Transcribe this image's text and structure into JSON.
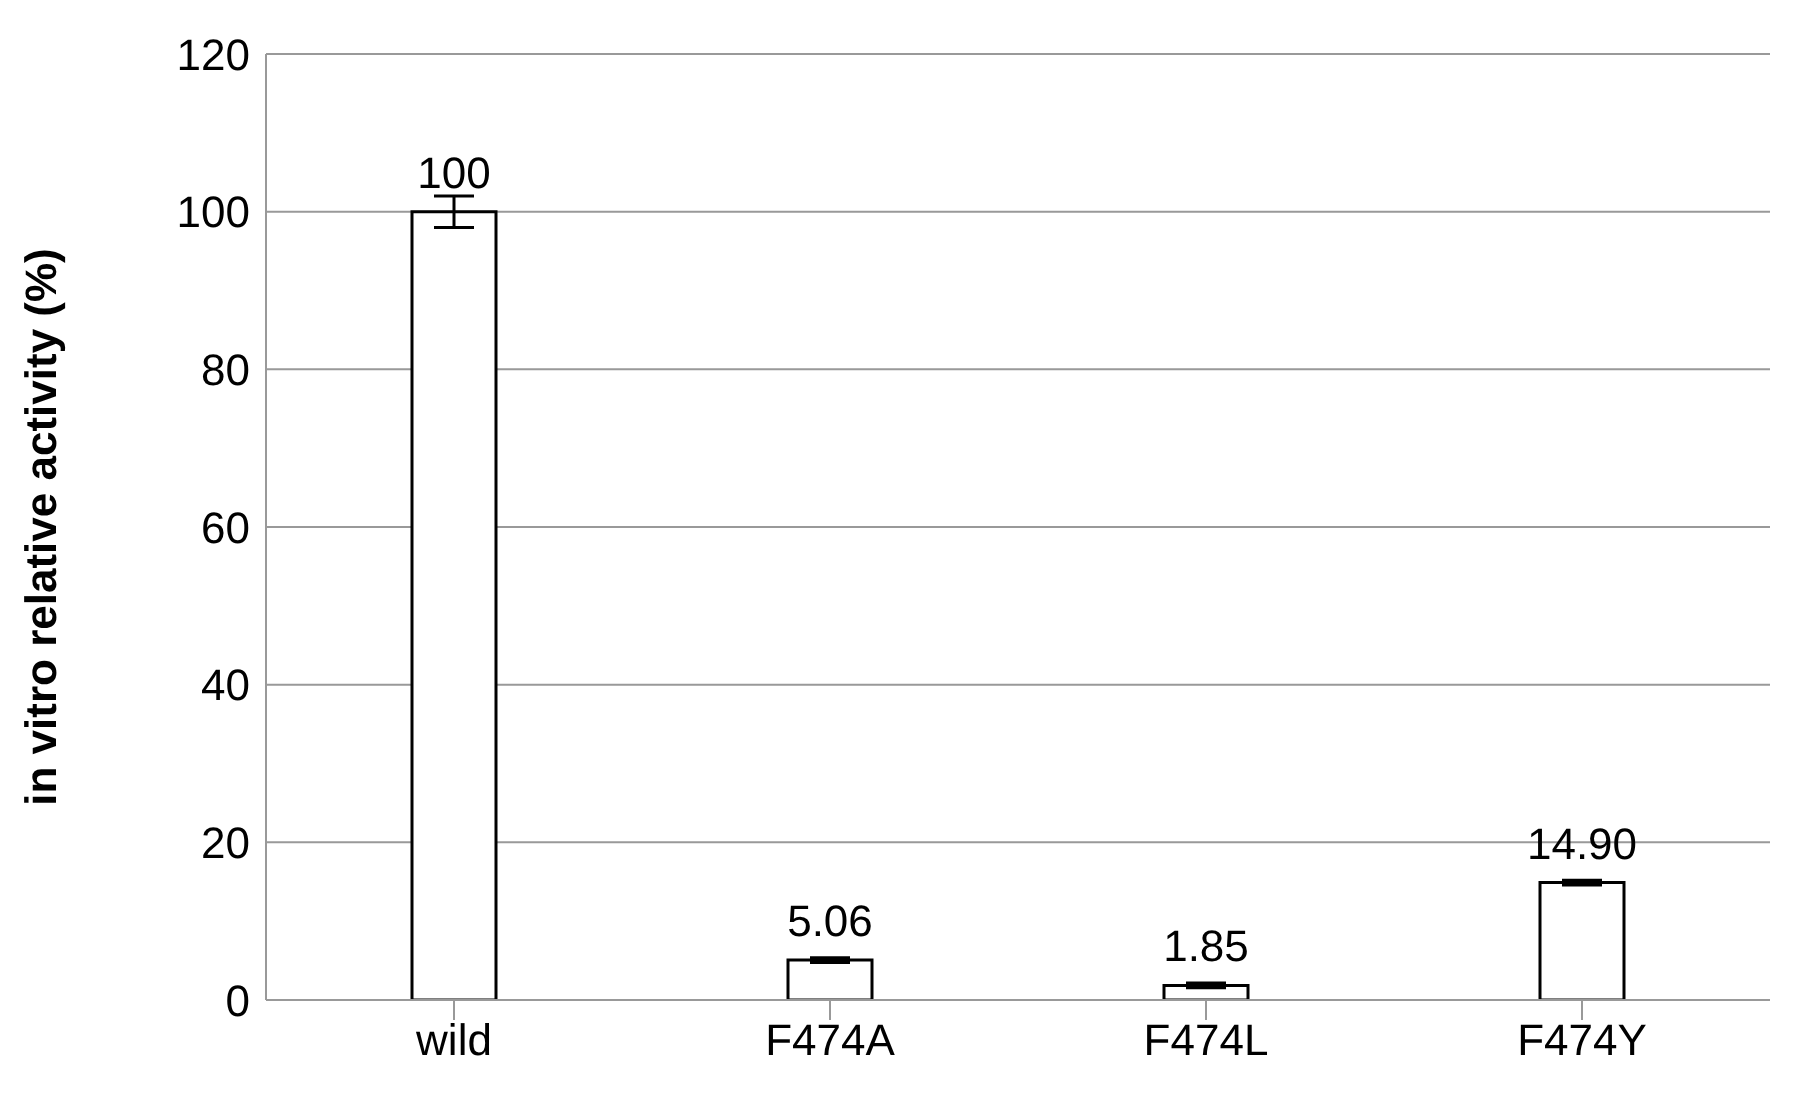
{
  "chart_data": {
    "type": "bar",
    "ylabel": "in vitro relative activity (%)",
    "categories": [
      "wild",
      "F474A",
      "F474L",
      "F474Y"
    ],
    "values": [
      100,
      5.06,
      1.85,
      14.9
    ],
    "value_labels": [
      "100",
      "5.06",
      "1.85",
      "14.90"
    ],
    "errors": [
      2,
      0.3,
      0.3,
      0.3
    ],
    "color": "#ffffff",
    "ylim": [
      0,
      120
    ],
    "yticks": [
      0,
      20,
      40,
      60,
      80,
      100,
      120
    ],
    "grid": "y"
  }
}
